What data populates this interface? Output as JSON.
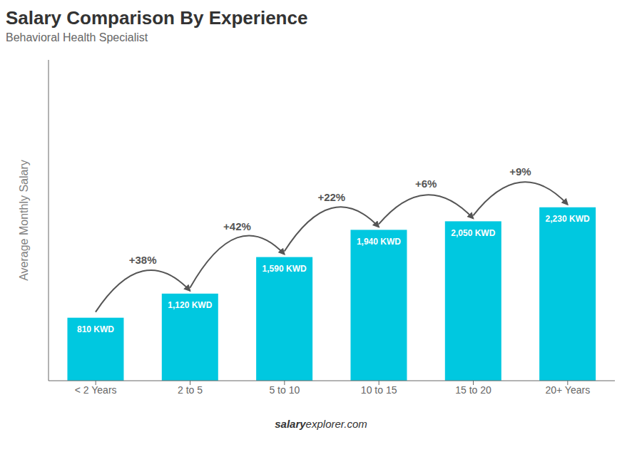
{
  "chart_data": {
    "type": "bar",
    "title": "Salary Comparison By Experience",
    "subtitle": "Behavioral Health Specialist",
    "ylabel": "Average Monthly Salary",
    "categories": [
      "< 2 Years",
      "2 to 5",
      "5 to 10",
      "10 to 15",
      "15 to 20",
      "20+ Years"
    ],
    "values": [
      810,
      1120,
      1590,
      1940,
      2050,
      2230
    ],
    "value_labels": [
      "810 KWD",
      "1,120 KWD",
      "1,590 KWD",
      "1,940 KWD",
      "2,050 KWD",
      "2,230 KWD"
    ],
    "data_labels": true,
    "color": "#00c8e0",
    "ylim": [
      0,
      4125.5
    ],
    "tick_labels": "x",
    "grid": false,
    "annotations": [
      {
        "from": "< 2 Years",
        "to": "2 to 5",
        "text": "+38%"
      },
      {
        "from": "2 to 5",
        "to": "5 to 10",
        "text": "+42%"
      },
      {
        "from": "5 to 10",
        "to": "10 to 15",
        "text": "+22%"
      },
      {
        "from": "10 to 15",
        "to": "15 to 20",
        "text": "+6%"
      },
      {
        "from": "15 to 20",
        "to": "20+ Years",
        "text": "+9%"
      }
    ],
    "footer": [
      "salary",
      "explorer.com"
    ]
  }
}
